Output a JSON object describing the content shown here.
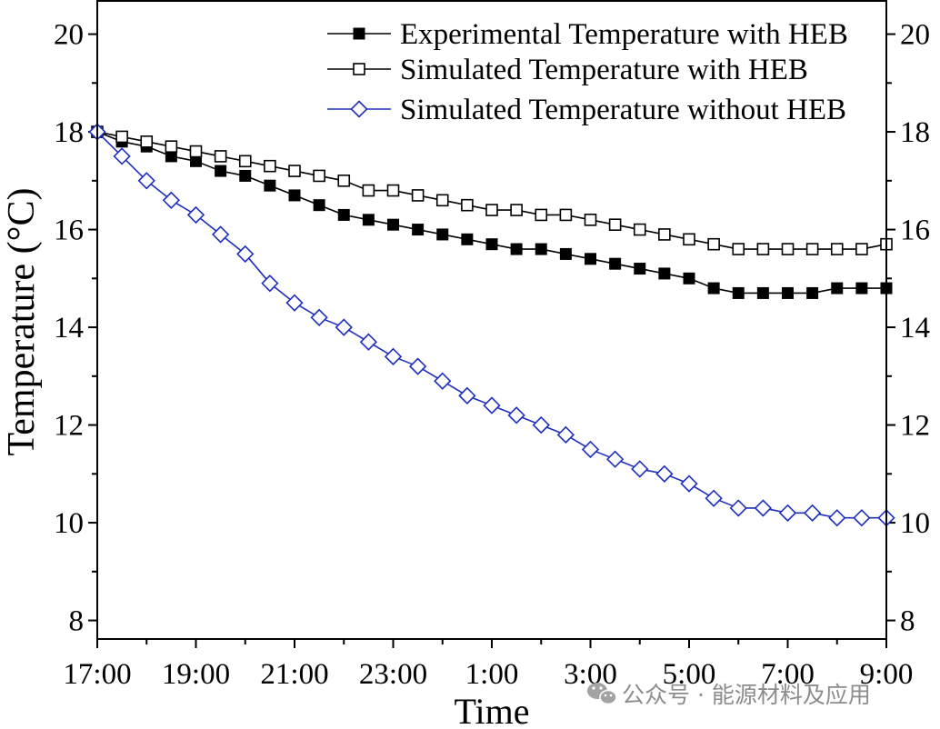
{
  "chart_data": {
    "type": "line",
    "xlabel": "Time",
    "ylabel": "Temperature (°C)",
    "xlim": [
      17,
      33
    ],
    "ylim": [
      7.62,
      20.68
    ],
    "grid": false,
    "legend_position": "top-right",
    "x": [
      17,
      17.5,
      18,
      18.5,
      19,
      19.5,
      20,
      20.5,
      21,
      21.5,
      22,
      22.5,
      23,
      23.5,
      24,
      24.5,
      25,
      25.5,
      26,
      26.5,
      27,
      27.5,
      28,
      28.5,
      29,
      29.5,
      30,
      30.5,
      31,
      31.5,
      32,
      32.5,
      33
    ],
    "x_ticks": [
      17,
      19,
      21,
      23,
      25,
      27,
      29,
      31,
      33
    ],
    "x_tick_labels": [
      "17:00",
      "19:00",
      "21:00",
      "23:00",
      "1:00",
      "3:00",
      "5:00",
      "7:00",
      "9:00"
    ],
    "x_minor_ticks": [
      18,
      20,
      22,
      24,
      26,
      28,
      30,
      32
    ],
    "y_ticks": [
      8,
      10,
      12,
      14,
      16,
      18,
      20
    ],
    "y_tick_labels": [
      "8",
      "10",
      "12",
      "14",
      "16",
      "18",
      "20"
    ],
    "y_minor_ticks": [
      9,
      11,
      13,
      15,
      17,
      19
    ],
    "series": [
      {
        "name": "Experimental Temperature with HEB",
        "color": "#000000",
        "marker": "filled-square",
        "values": [
          18.0,
          17.8,
          17.7,
          17.5,
          17.4,
          17.2,
          17.1,
          16.9,
          16.7,
          16.5,
          16.3,
          16.2,
          16.1,
          16.0,
          15.9,
          15.8,
          15.7,
          15.6,
          15.6,
          15.5,
          15.4,
          15.3,
          15.2,
          15.1,
          15.0,
          14.8,
          14.7,
          14.7,
          14.7,
          14.7,
          14.8,
          14.8,
          14.8
        ]
      },
      {
        "name": "Simulated Temperature with HEB",
        "color": "#000000",
        "marker": "open-square",
        "values": [
          18.0,
          17.9,
          17.8,
          17.7,
          17.6,
          17.5,
          17.4,
          17.3,
          17.2,
          17.1,
          17.0,
          16.8,
          16.8,
          16.7,
          16.6,
          16.5,
          16.4,
          16.4,
          16.3,
          16.3,
          16.2,
          16.1,
          16.0,
          15.9,
          15.8,
          15.7,
          15.6,
          15.6,
          15.6,
          15.6,
          15.6,
          15.6,
          15.7
        ]
      },
      {
        "name": "Simulated Temperature without HEB",
        "color": "#1f2fbd",
        "marker": "open-diamond",
        "values": [
          18.0,
          17.5,
          17.0,
          16.6,
          16.3,
          15.9,
          15.5,
          14.9,
          14.5,
          14.2,
          14.0,
          13.7,
          13.4,
          13.2,
          12.9,
          12.6,
          12.4,
          12.2,
          12.0,
          11.8,
          11.5,
          11.3,
          11.1,
          11.0,
          10.8,
          10.5,
          10.3,
          10.3,
          10.2,
          10.2,
          10.1,
          10.1,
          10.1
        ]
      }
    ]
  },
  "watermark": {
    "text": "公众号 · 能源材料及应用"
  }
}
